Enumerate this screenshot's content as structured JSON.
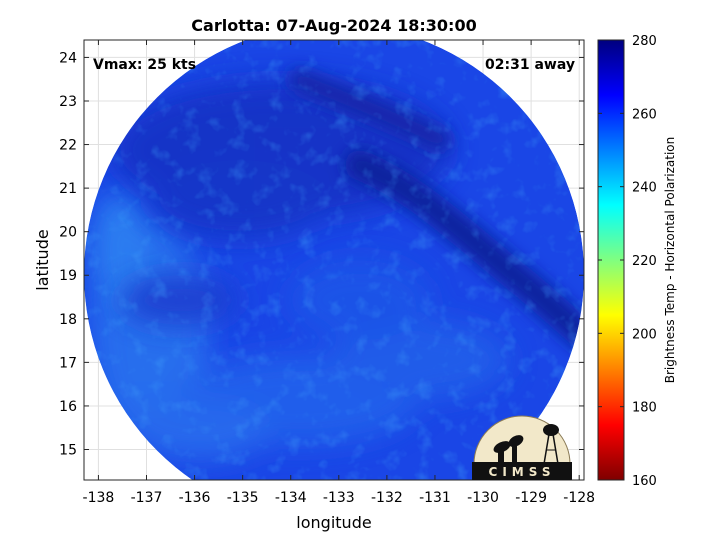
{
  "figure": {
    "title": "Carlotta: 07-Aug-2024 18:30:00",
    "vmax_label": "Vmax: 25 kts",
    "time_label": "02:31 away",
    "xlabel": "longitude",
    "ylabel": "latitude",
    "colorbar_label": "Brightness Temp - Horizontal Polarization",
    "logo_text": "CIMSS"
  },
  "axes": {
    "x_ticks": [
      "-138",
      "-137",
      "-136",
      "-135",
      "-134",
      "-133",
      "-132",
      "-131",
      "-130",
      "-129",
      "-128"
    ],
    "y_ticks": [
      "15",
      "16",
      "17",
      "18",
      "19",
      "20",
      "21",
      "22",
      "23",
      "24"
    ],
    "colorbar_ticks": [
      "160",
      "180",
      "200",
      "220",
      "240",
      "260",
      "280"
    ],
    "xlim": [
      -138.3,
      -127.9
    ],
    "ylim": [
      14.3,
      24.4
    ],
    "clim": [
      160,
      280
    ],
    "grid": true
  },
  "colors": {
    "swath_base": "#1540e8",
    "swath_dark": "#1228b4",
    "swath_light": "#2a78f0",
    "rainband": "#0f1f9c"
  },
  "colormap": [
    "#7f0000",
    "#ff0000",
    "#ff8000",
    "#ffff00",
    "#80ff80",
    "#00ffff",
    "#0080ff",
    "#0000ff",
    "#00007f"
  ]
}
